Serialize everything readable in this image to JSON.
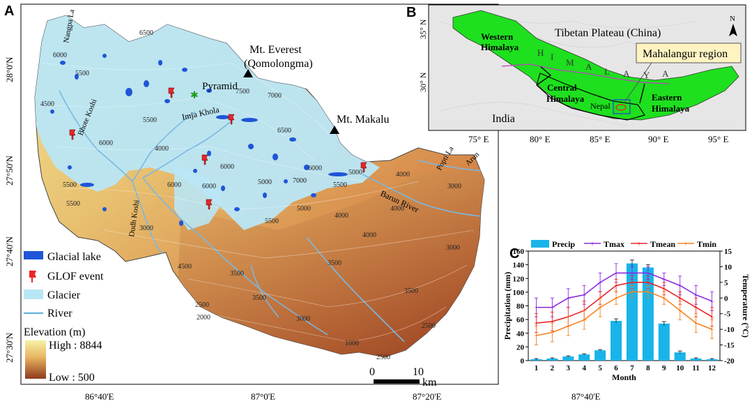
{
  "panel_a": {
    "letter": "A",
    "peaks": {
      "everest_line1": "Mt. Everest",
      "everest_line2": "(Qomolongma)",
      "makalu": "Mt. Makalu",
      "pyramid": "Pyramid"
    },
    "rivers": [
      "Bhote Koshi",
      "Imja Khola",
      "Dudh Koshi",
      "Barun River",
      "Arun",
      "Popti La",
      "Nangpa La"
    ],
    "contours": [
      "6500",
      "6000",
      "5500",
      "5500",
      "4500",
      "5500",
      "4000",
      "6500",
      "6000",
      "7000",
      "7500",
      "7000",
      "6000",
      "6000",
      "5000",
      "5000",
      "5500",
      "6000",
      "5500",
      "5500",
      "4000",
      "4000",
      "3000",
      "3000",
      "4000",
      "3500",
      "3500",
      "3500",
      "2500",
      "2000",
      "2500",
      "3000",
      "3500",
      "4500",
      "4000",
      "2500",
      "1000",
      "3000",
      "5000",
      "6000"
    ],
    "lat_labels": [
      "28°0'N",
      "27°50'N",
      "27°40'N",
      "27°30'N"
    ],
    "lon_labels": [
      "86°40'E",
      "87°0'E",
      "87°20'E",
      "87°40'E"
    ],
    "scale": {
      "zero": "0",
      "ten": "10",
      "unit": "km"
    },
    "legend": {
      "glacial_lake": "Glacial lake",
      "glof_event": "GLOF event",
      "glacier": "Glacier",
      "river": "River",
      "elevation_title": "Elevation (m)",
      "high": "High : 8844",
      "low": "Low : 500"
    },
    "colors": {
      "glacier": "#b9e6f5",
      "lake": "#1f55d6",
      "glof": "#e8262a",
      "river": "#7ab8e0",
      "elev_high": "#f6f2a8",
      "elev_mid": "#e4a35a",
      "elev_low": "#8e3a1c"
    }
  },
  "panel_b": {
    "letter": "B",
    "labels": {
      "tibet": "Tibetan Plateau (China)",
      "western_1": "Western",
      "western_2": "Himalaya",
      "central_1": "Central",
      "central_2": "Himalaya",
      "eastern_1": "Eastern",
      "eastern_2": "Himalaya",
      "nepal": "Nepal",
      "india": "India",
      "mahalangur": "Mahalangur region",
      "north": "N"
    },
    "himalaya_letters": [
      "H",
      "I",
      "M",
      "A",
      "L",
      "A",
      "Y",
      "A"
    ],
    "lat_labels": [
      "35° N",
      "30° N"
    ],
    "lon_labels": [
      "75° E",
      "80° E",
      "85° E",
      "90° E",
      "95° E"
    ],
    "colors": {
      "himalaya": "#1ee01e",
      "callout": "#fdf4c2"
    }
  },
  "panel_c": {
    "letter": "C",
    "chart_data": {
      "type": "bar",
      "xlabel": "Month",
      "ylabel": "Precipitation (mm)",
      "y2label": "Temperature (°C)",
      "categories": [
        "1",
        "2",
        "3",
        "4",
        "5",
        "6",
        "7",
        "8",
        "9",
        "10",
        "11",
        "12"
      ],
      "ylim": [
        0,
        160
      ],
      "y2lim": [
        -20,
        15
      ],
      "yticks": [
        "0",
        "20",
        "40",
        "60",
        "80",
        "100",
        "120",
        "140",
        "160"
      ],
      "y2ticks": [
        "-20",
        "-15",
        "-10",
        "-5",
        "0",
        "5",
        "10",
        "15"
      ],
      "bars": {
        "name": "Precip",
        "color": "#18b4ea",
        "values": [
          2,
          3,
          6,
          9,
          15,
          58,
          142,
          136,
          54,
          12,
          3,
          2
        ],
        "errors": [
          1,
          1,
          1,
          1,
          1,
          3,
          5,
          4,
          3,
          2,
          1,
          1
        ]
      },
      "series": [
        {
          "name": "Tmax",
          "color": "#8a2be2",
          "values": [
            -3,
            -3,
            0,
            1,
            5,
            8,
            8,
            8,
            6,
            4,
            1,
            -1
          ],
          "errors": [
            3,
            3,
            3,
            3,
            3,
            3,
            2,
            2,
            2,
            3,
            3,
            3
          ]
        },
        {
          "name": "Tmean",
          "color": "#e8262a",
          "values": [
            -8,
            -7.5,
            -6,
            -4,
            0,
            4,
            5,
            5,
            3,
            0,
            -3,
            -6
          ],
          "errors": [
            3,
            3,
            3,
            3,
            2,
            2,
            2,
            2,
            2,
            2,
            3,
            3
          ]
        },
        {
          "name": "Tmin",
          "color": "#f58220",
          "values": [
            -12,
            -11,
            -9,
            -7,
            -3,
            0,
            2,
            2,
            0,
            -4,
            -8,
            -10
          ],
          "errors": [
            3,
            3,
            3,
            3,
            3,
            2,
            2,
            2,
            2,
            3,
            3,
            3
          ]
        }
      ],
      "legend_position": "top"
    }
  }
}
